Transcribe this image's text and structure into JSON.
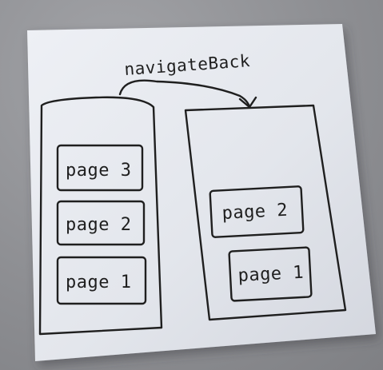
{
  "diagram": {
    "arrow_label": "navigateBack",
    "stack_before": [
      "page 3",
      "page 2",
      "page 1"
    ],
    "stack_after": [
      "page 2",
      "page 1"
    ]
  },
  "colors": {
    "paper": "#e4e6ec",
    "ink": "#1f1f1f",
    "background": "#8f9094"
  }
}
